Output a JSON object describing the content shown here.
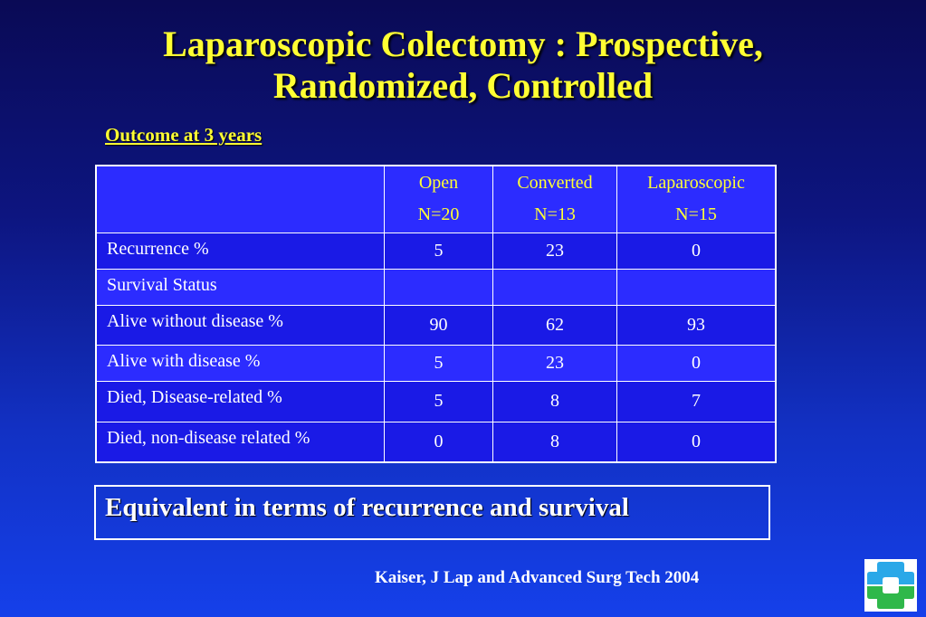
{
  "title": {
    "line1": "Laparoscopic Colectomy : Prospective,",
    "line2": "Randomized, Controlled"
  },
  "subtitle": "Outcome at 3 years",
  "table": {
    "columns": [
      {
        "name": "Open",
        "n": "N=20"
      },
      {
        "name": "Converted",
        "n": "N=13"
      },
      {
        "name": "Laparoscopic",
        "n": "N=15"
      }
    ],
    "rows": [
      {
        "label": "Recurrence %",
        "values": [
          "5",
          "23",
          "0"
        ]
      },
      {
        "label": "Survival Status",
        "values": [
          "",
          "",
          ""
        ]
      },
      {
        "label": "Alive without disease %",
        "values": [
          "90",
          "62",
          "93"
        ]
      },
      {
        "label": "Alive with disease %",
        "values": [
          "5",
          "23",
          "0"
        ]
      },
      {
        "label": "Died, Disease-related %",
        "values": [
          "5",
          "8",
          "7"
        ]
      },
      {
        "label": "Died, non-disease related %",
        "values": [
          "0",
          "8",
          "0"
        ]
      }
    ]
  },
  "conclusion": "Equivalent in terms of recurrence and survival",
  "citation": "Kaiser, J Lap and Advanced Surg Tech 2004",
  "logo": {
    "icon": "clinic-cross-logo-icon",
    "colors": {
      "top": "#2aa8e8",
      "bottom": "#2fb84a"
    }
  },
  "colors": {
    "title": "#ffff33",
    "table_header_bg": "#2c2cff",
    "table_body_bg": "#1a1ae6"
  }
}
